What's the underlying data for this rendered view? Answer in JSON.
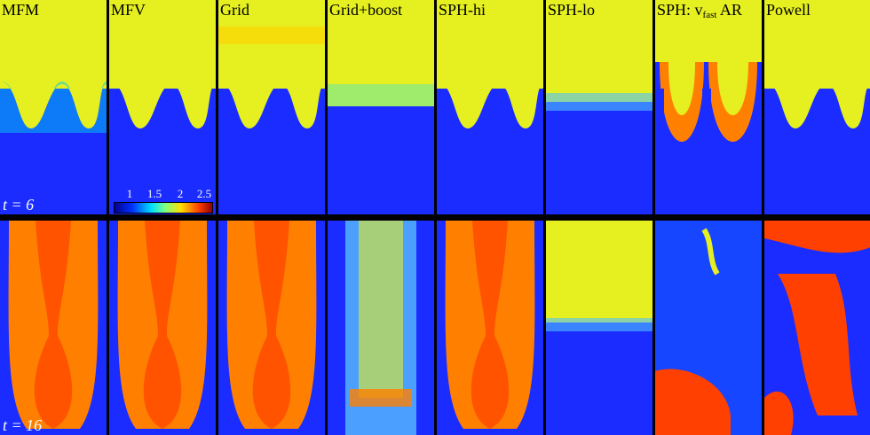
{
  "panels": [
    {
      "label": "MFM",
      "label_sub": "",
      "label_suffix": ""
    },
    {
      "label": "MFV",
      "label_sub": "",
      "label_suffix": ""
    },
    {
      "label": "Grid",
      "label_sub": "",
      "label_suffix": ""
    },
    {
      "label": "Grid+boost",
      "label_sub": "",
      "label_suffix": ""
    },
    {
      "label": "SPH-hi",
      "label_sub": "",
      "label_suffix": ""
    },
    {
      "label": "SPH-lo",
      "label_sub": "",
      "label_suffix": ""
    },
    {
      "label": "SPH: v",
      "label_sub": "fast",
      "label_suffix": " AR"
    },
    {
      "label": "Powell",
      "label_sub": "",
      "label_suffix": ""
    }
  ],
  "times": [
    "t = 6",
    "t = 16"
  ],
  "colorbar": {
    "ticks": [
      "1",
      "1.5",
      "2",
      "2.5"
    ],
    "colors": {
      "dense": "#900000",
      "light": "#0000b0",
      "top": "#e6f020"
    }
  }
}
